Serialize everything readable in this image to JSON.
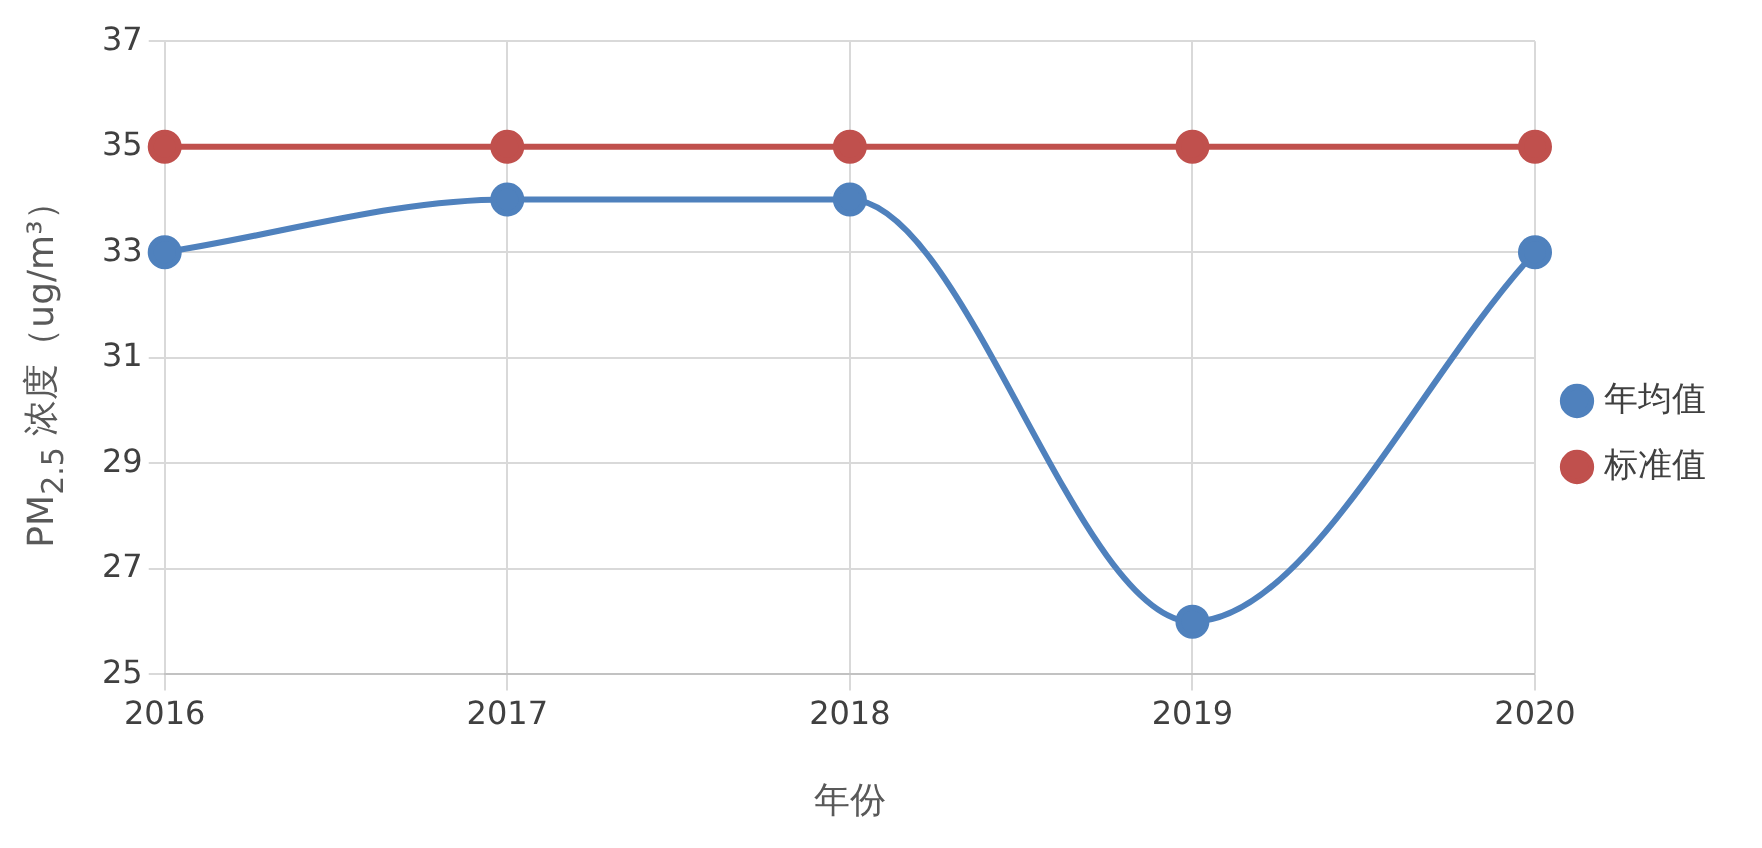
{
  "chart_data": {
    "type": "line",
    "xlabel": "年份",
    "ylabel": "PM$_{2.5}$ 浓度（ug/m³）",
    "categories": [
      "2016",
      "2017",
      "2018",
      "2019",
      "2020"
    ],
    "series": [
      {
        "name": "年均值",
        "color": "#4f81bd",
        "values": [
          33,
          34,
          34,
          26,
          33
        ]
      },
      {
        "name": "标准值",
        "color": "#c0504d",
        "values": [
          35,
          35,
          35,
          35,
          35
        ]
      }
    ],
    "ylim": [
      25,
      37
    ],
    "yticks": [
      25,
      27,
      29,
      31,
      33,
      35,
      37
    ],
    "grid": true,
    "legend": "right",
    "marker": "circle",
    "line_style": "solid"
  }
}
